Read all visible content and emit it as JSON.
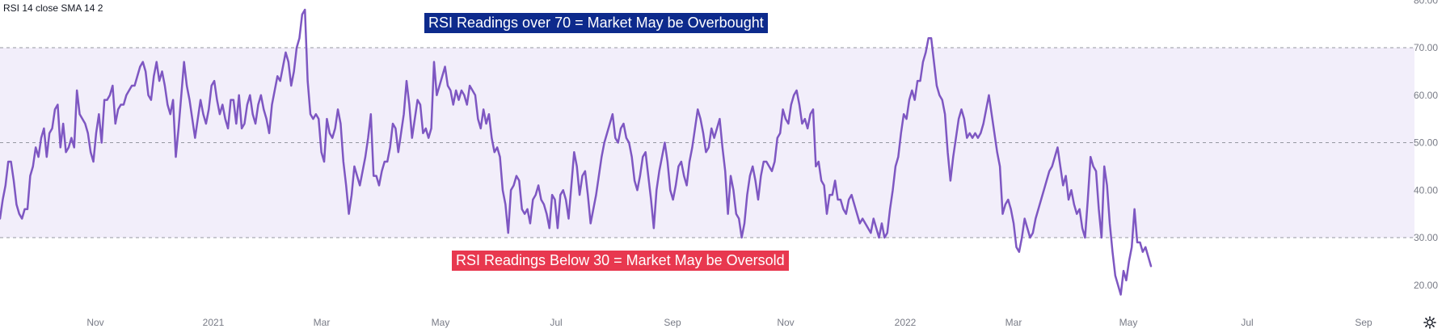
{
  "legend": {
    "text": "RSI 14 close SMA 14 2"
  },
  "annotations": {
    "overbought": "RSI Readings over 70 = Market May be Overbought",
    "oversold": "RSI Readings Below 30 = Market May be Oversold"
  },
  "colors": {
    "line": "#7e57c2",
    "band_fill": "#f2eefa",
    "level_line": "#9598a1",
    "overbought_bg": "#0d2a8c",
    "oversold_bg": "#e8384f",
    "axis_text": "#787b86"
  },
  "icons": {
    "settings": "gear-icon"
  },
  "chart_data": {
    "type": "line",
    "title": "",
    "xlabel": "",
    "ylabel": "",
    "ylim": [
      15,
      80
    ],
    "y_ticks": [
      "80.00",
      "70.00",
      "60.00",
      "50.00",
      "40.00",
      "30.00",
      "20.00"
    ],
    "x_ticks": [
      "Nov",
      "2021",
      "Mar",
      "May",
      "Jul",
      "Sep",
      "Nov",
      "2022",
      "Mar",
      "May",
      "Jul",
      "Sep"
    ],
    "levels": [
      70,
      50,
      30
    ],
    "band": [
      30,
      70
    ],
    "grid": false,
    "series": [
      {
        "name": "",
        "x_start": "2020-09-21",
        "x_end": "2022-05-09",
        "values": [
          34,
          38,
          41,
          46,
          46,
          42,
          37,
          35,
          34,
          36,
          36,
          43,
          45,
          49,
          47,
          51,
          53,
          47,
          52,
          53,
          57,
          58,
          49,
          54,
          48,
          49,
          51,
          49,
          61,
          56,
          55,
          54,
          52,
          48,
          46,
          52,
          56,
          50,
          59,
          59,
          60,
          62,
          54,
          57,
          58,
          58,
          60,
          61,
          62,
          62,
          64,
          66,
          67,
          65,
          60,
          59,
          64,
          67,
          63,
          65,
          62,
          58,
          56,
          59,
          47,
          53,
          60,
          67,
          62,
          59,
          55,
          51,
          55,
          59,
          56,
          54,
          57,
          62,
          63,
          59,
          56,
          58,
          55,
          53,
          59,
          59,
          54,
          60,
          53,
          54,
          58,
          60,
          56,
          54,
          58,
          60,
          57,
          55,
          52,
          58,
          61,
          64,
          63,
          66,
          69,
          67,
          62,
          65,
          70,
          72,
          77,
          78,
          63,
          56,
          55,
          56,
          55,
          48,
          46,
          55,
          52,
          51,
          53,
          57,
          54,
          46,
          41,
          35,
          39,
          45,
          43,
          41,
          44,
          47,
          51,
          56,
          43,
          43,
          41,
          44,
          46,
          46,
          49,
          54,
          53,
          48,
          52,
          56,
          63,
          58,
          51,
          55,
          59,
          58,
          52,
          53,
          51,
          53,
          67,
          60,
          62,
          64,
          66,
          62,
          61,
          58,
          61,
          59,
          61,
          60,
          58,
          62,
          61,
          60,
          55,
          53,
          57,
          54,
          56,
          51,
          48,
          49,
          47,
          40,
          37,
          31,
          40,
          41,
          43,
          42,
          36,
          35,
          36,
          33,
          38,
          39,
          41,
          38,
          37,
          35,
          32,
          39,
          38,
          32,
          39,
          40,
          38,
          34,
          41,
          48,
          45,
          39,
          43,
          44,
          39,
          33,
          36,
          39,
          43,
          47,
          50,
          52,
          54,
          56,
          51,
          50,
          53,
          54,
          51,
          50,
          47,
          42,
          40,
          43,
          47,
          48,
          43,
          38,
          32,
          40,
          44,
          47,
          50,
          46,
          40,
          38,
          41,
          45,
          46,
          43,
          41,
          46,
          49,
          53,
          57,
          55,
          52,
          48,
          49,
          53,
          51,
          53,
          55,
          49,
          44,
          35,
          43,
          40,
          35,
          34,
          30,
          33,
          39,
          43,
          45,
          42,
          38,
          43,
          46,
          46,
          45,
          44,
          46,
          51,
          52,
          57,
          55,
          54,
          58,
          60,
          61,
          58,
          54,
          55,
          53,
          56,
          57,
          45,
          46,
          42,
          41,
          35,
          39,
          39,
          42,
          38,
          38,
          36,
          35,
          38,
          39,
          37,
          35,
          33,
          34,
          33,
          32,
          31,
          34,
          32,
          30,
          33,
          30,
          31,
          36,
          40,
          45,
          47,
          52,
          56,
          55,
          59,
          61,
          59,
          63,
          63,
          67,
          69,
          72,
          72,
          67,
          62,
          60,
          59,
          56,
          48,
          42,
          47,
          51,
          55,
          57,
          55,
          51,
          52,
          51,
          52,
          51,
          52,
          54,
          57,
          60,
          56,
          52,
          48,
          45,
          35,
          37,
          38,
          36,
          33,
          28,
          27,
          30,
          34,
          32,
          30,
          31,
          34,
          36,
          38,
          40,
          42,
          44,
          45,
          47,
          49,
          45,
          41,
          43,
          38,
          40,
          37,
          35,
          36,
          32,
          30,
          38,
          47,
          45,
          44,
          36,
          30,
          45,
          41,
          33,
          27,
          22,
          20,
          18,
          23,
          21,
          25,
          28,
          36,
          29,
          29,
          27,
          28,
          26,
          24
        ]
      }
    ],
    "y_axis_position": "right"
  }
}
